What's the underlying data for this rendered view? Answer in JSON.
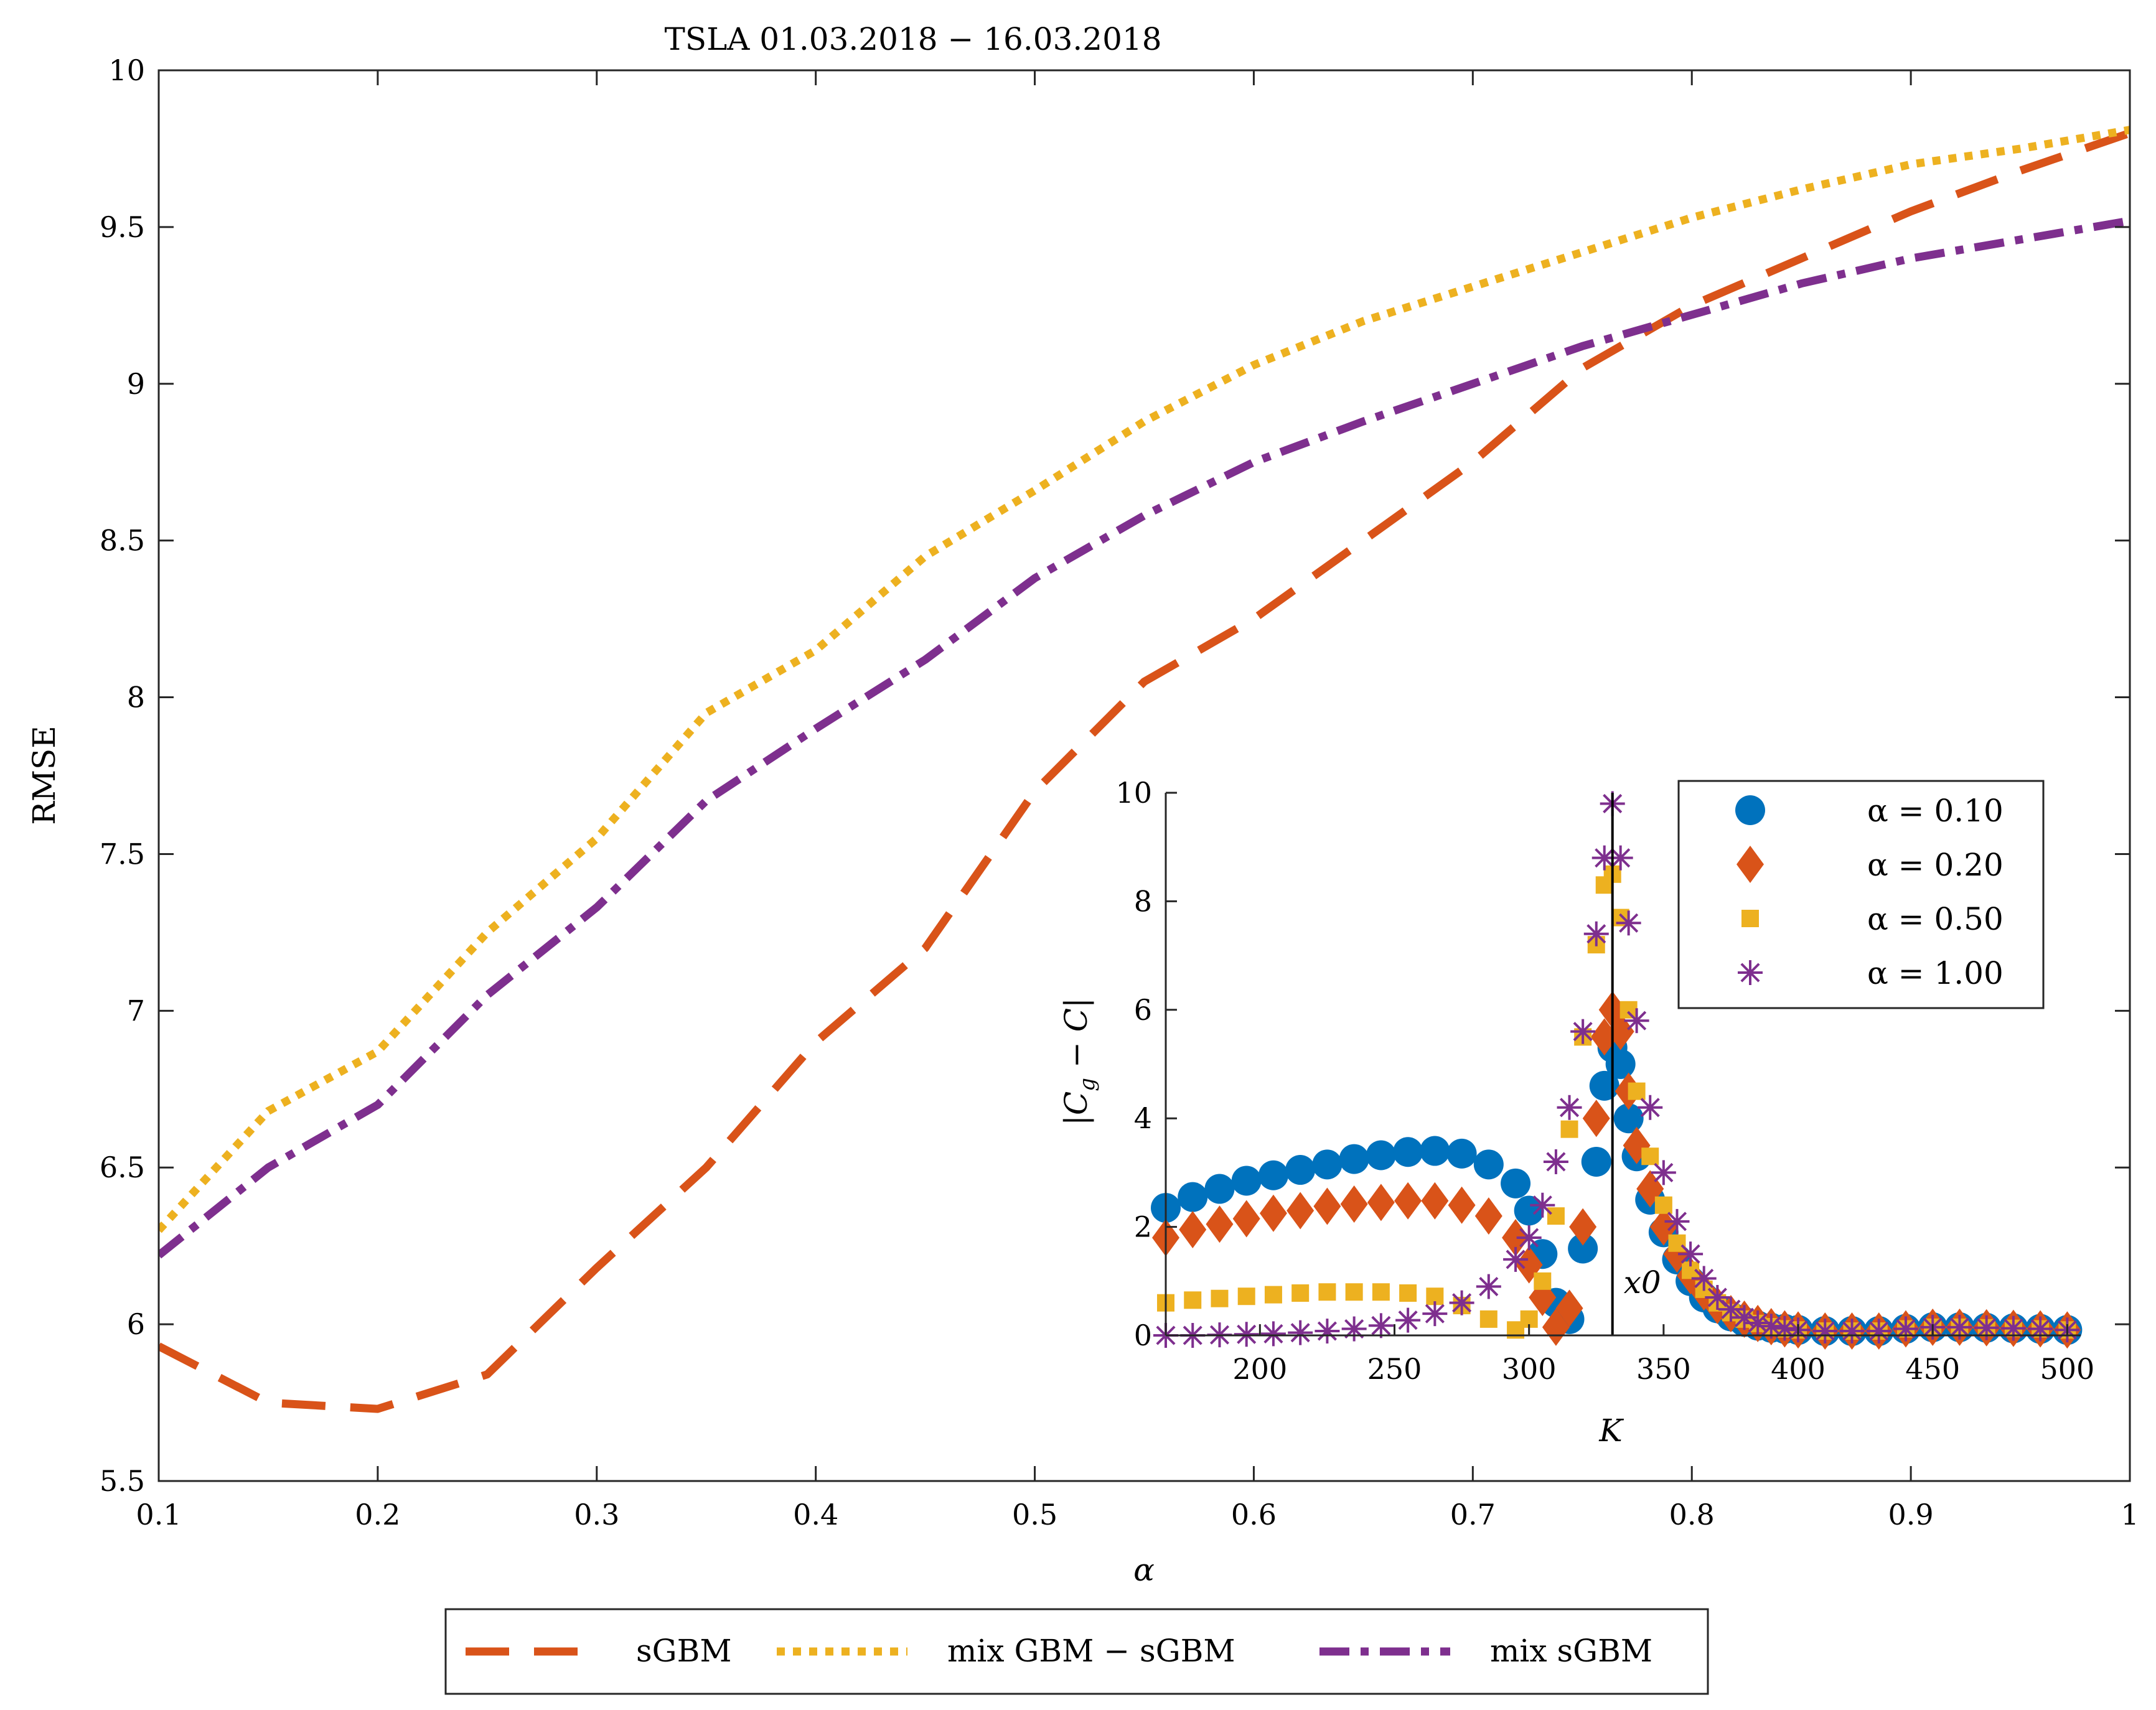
{
  "chart_data": [
    {
      "type": "line",
      "title": "TSLA 01.03.2018 − 16.03.2018",
      "xlabel": "α",
      "ylabel": "RMSE",
      "xlim": [
        0.1,
        1.0
      ],
      "ylim": [
        5.5,
        10.0
      ],
      "x_ticks": [
        "0.1",
        "0.2",
        "0.3",
        "0.4",
        "0.5",
        "0.6",
        "0.7",
        "0.8",
        "0.9",
        "1"
      ],
      "y_ticks": [
        "5.5",
        "6",
        "6.5",
        "7",
        "7.5",
        "8",
        "8.5",
        "9",
        "9.5",
        "10"
      ],
      "legend_position": "bottom-outside",
      "x": [
        0.1,
        0.15,
        0.2,
        0.25,
        0.3,
        0.35,
        0.4,
        0.45,
        0.5,
        0.55,
        0.6,
        0.65,
        0.7,
        0.75,
        0.8,
        0.85,
        0.9,
        0.95,
        1.0
      ],
      "series": [
        {
          "name": "sGBM",
          "color": "#D95319",
          "style": "dashed",
          "values": [
            5.93,
            5.75,
            5.73,
            5.84,
            6.18,
            6.5,
            6.9,
            7.2,
            7.7,
            8.05,
            8.25,
            8.5,
            8.75,
            9.05,
            9.25,
            9.4,
            9.55,
            9.68,
            9.8
          ]
        },
        {
          "name": "mix GBM − sGBM",
          "color": "#EDB120",
          "style": "dotted",
          "values": [
            6.3,
            6.68,
            6.87,
            7.25,
            7.55,
            7.95,
            8.15,
            8.45,
            8.66,
            8.88,
            9.06,
            9.2,
            9.31,
            9.42,
            9.53,
            9.62,
            9.7,
            9.75,
            9.81
          ]
        },
        {
          "name": "mix sGBM",
          "color": "#7E2F8E",
          "style": "dashdot",
          "values": [
            6.22,
            6.5,
            6.7,
            7.05,
            7.33,
            7.67,
            7.9,
            8.12,
            8.38,
            8.58,
            8.75,
            8.88,
            9.0,
            9.12,
            9.22,
            9.32,
            9.4,
            9.46,
            9.52
          ]
        }
      ]
    },
    {
      "type": "scatter",
      "title": "",
      "xlabel": "K",
      "ylabel": "|C_g − C|",
      "xlim": [
        165,
        505
      ],
      "ylim": [
        0,
        10
      ],
      "x_ticks": [
        "200",
        "250",
        "300",
        "350",
        "400",
        "450",
        "500"
      ],
      "y_ticks": [
        "0",
        "2",
        "4",
        "6",
        "8",
        "10"
      ],
      "vertical_line": {
        "x": 331,
        "label": "x0"
      },
      "legend_position": "top-right",
      "x": [
        165,
        175,
        185,
        195,
        205,
        215,
        225,
        235,
        245,
        255,
        265,
        275,
        285,
        295,
        300,
        305,
        310,
        315,
        320,
        325,
        328,
        331,
        334,
        337,
        340,
        345,
        350,
        355,
        360,
        365,
        370,
        375,
        380,
        385,
        390,
        395,
        400,
        410,
        420,
        430,
        440,
        450,
        460,
        470,
        480,
        490,
        500
      ],
      "series": [
        {
          "name": "α = 0.10",
          "color": "#0072BD",
          "marker": "circle",
          "values": [
            2.35,
            2.55,
            2.7,
            2.85,
            2.95,
            3.05,
            3.15,
            3.25,
            3.32,
            3.38,
            3.4,
            3.35,
            3.15,
            2.8,
            2.3,
            1.5,
            0.6,
            0.3,
            1.6,
            3.2,
            4.6,
            5.3,
            5.0,
            4.0,
            3.3,
            2.5,
            1.9,
            1.4,
            1.0,
            0.7,
            0.5,
            0.35,
            0.25,
            0.18,
            0.14,
            0.12,
            0.1,
            0.08,
            0.08,
            0.08,
            0.12,
            0.15,
            0.15,
            0.14,
            0.13,
            0.12,
            0.1
          ]
        },
        {
          "name": "α = 0.20",
          "color": "#D95319",
          "marker": "diamond",
          "values": [
            1.8,
            1.95,
            2.05,
            2.15,
            2.25,
            2.3,
            2.38,
            2.42,
            2.45,
            2.48,
            2.48,
            2.4,
            2.2,
            1.8,
            1.3,
            0.7,
            0.15,
            0.5,
            2.0,
            4.0,
            5.5,
            6.0,
            5.6,
            4.5,
            3.5,
            2.7,
            2.0,
            1.5,
            1.1,
            0.8,
            0.55,
            0.4,
            0.3,
            0.22,
            0.16,
            0.12,
            0.1,
            0.08,
            0.08,
            0.08,
            0.12,
            0.15,
            0.15,
            0.14,
            0.13,
            0.12,
            0.1
          ]
        },
        {
          "name": "α = 0.50",
          "color": "#EDB120",
          "marker": "square",
          "values": [
            0.6,
            0.65,
            0.68,
            0.72,
            0.75,
            0.78,
            0.8,
            0.8,
            0.8,
            0.78,
            0.72,
            0.55,
            0.3,
            0.1,
            0.3,
            1.0,
            2.2,
            3.8,
            5.5,
            7.2,
            8.3,
            8.5,
            7.7,
            6.0,
            4.5,
            3.3,
            2.4,
            1.7,
            1.2,
            0.85,
            0.6,
            0.42,
            0.3,
            0.22,
            0.16,
            0.12,
            0.1,
            0.08,
            0.08,
            0.08,
            0.12,
            0.15,
            0.15,
            0.14,
            0.13,
            0.12,
            0.1
          ]
        },
        {
          "name": "α = 1.00",
          "color": "#7E2F8E",
          "marker": "asterisk",
          "values": [
            0.0,
            0.0,
            0.01,
            0.02,
            0.03,
            0.05,
            0.08,
            0.12,
            0.18,
            0.28,
            0.4,
            0.6,
            0.9,
            1.4,
            1.8,
            2.4,
            3.2,
            4.2,
            5.6,
            7.4,
            8.8,
            9.8,
            8.8,
            7.6,
            5.8,
            4.2,
            3.0,
            2.1,
            1.5,
            1.05,
            0.7,
            0.48,
            0.33,
            0.23,
            0.17,
            0.13,
            0.1,
            0.08,
            0.08,
            0.08,
            0.12,
            0.15,
            0.15,
            0.14,
            0.13,
            0.12,
            0.1
          ]
        }
      ]
    }
  ]
}
